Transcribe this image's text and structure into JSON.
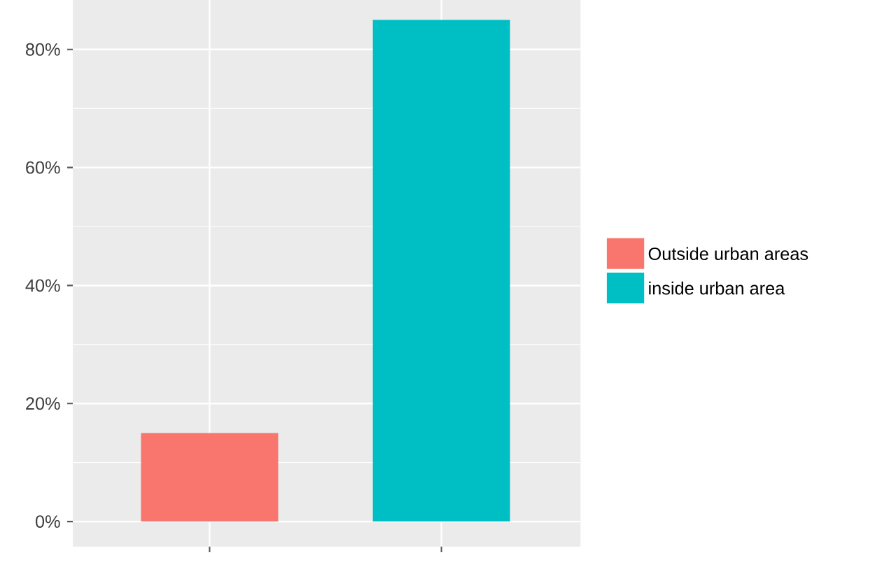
{
  "chart_data": {
    "type": "bar",
    "categories": [
      null,
      null
    ],
    "series": [
      {
        "name": "Outside urban areas",
        "color": "#f8766d",
        "values": [
          15,
          null
        ]
      },
      {
        "name": "inside urban area",
        "color": "#00bfc4",
        "values": [
          null,
          85
        ]
      }
    ],
    "ylim": [
      -4.25,
      89.25
    ],
    "yticks": [
      {
        "value": 0,
        "label": "0%"
      },
      {
        "value": 20,
        "label": "20%"
      },
      {
        "value": 40,
        "label": "40%"
      },
      {
        "value": 60,
        "label": "60%"
      },
      {
        "value": 80,
        "label": "80%"
      }
    ],
    "grid": true,
    "legend": "right",
    "tick_labels": "y"
  }
}
